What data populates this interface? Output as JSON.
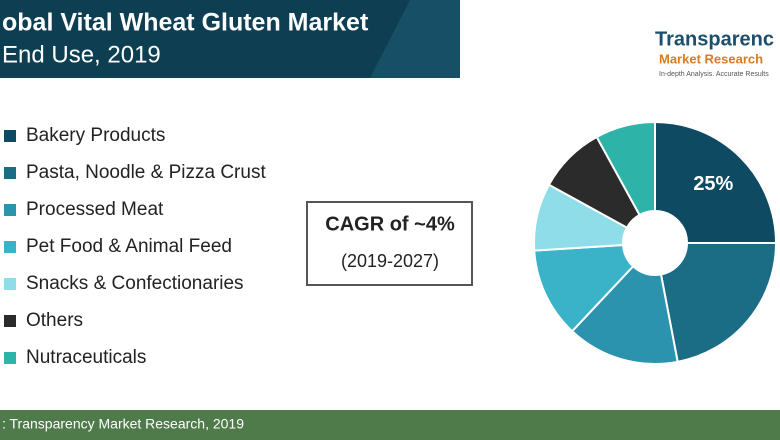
{
  "chart_data": {
    "type": "donut",
    "title": "obal Vital Wheat Gluten Market",
    "subtitle": "End Use, 2019",
    "categories": [
      "Bakery Products",
      "Pasta, Noodle & Pizza Crust",
      "Processed Meat",
      "Pet Food & Animal Feed",
      "Snacks & Confectionaries",
      "Others",
      "Nutraceuticals"
    ],
    "values": [
      25,
      22,
      15,
      12,
      9,
      9,
      8
    ],
    "value_labels": [
      "25%",
      null,
      null,
      null,
      null,
      null,
      null
    ],
    "colors": [
      "#0f4a63",
      "#1b6d86",
      "#2b93ae",
      "#3ab3c8",
      "#8fdde8",
      "#2b2b2b",
      "#2db3a8"
    ],
    "annotations": [
      "CAGR of ~4%",
      "(2019-2027)"
    ],
    "source": ": Transparency Market Research, 2019"
  },
  "logo": {
    "name": "Transparenc",
    "line2": "Market Research",
    "line3": "In-depth Analysis. Accurate Results"
  }
}
